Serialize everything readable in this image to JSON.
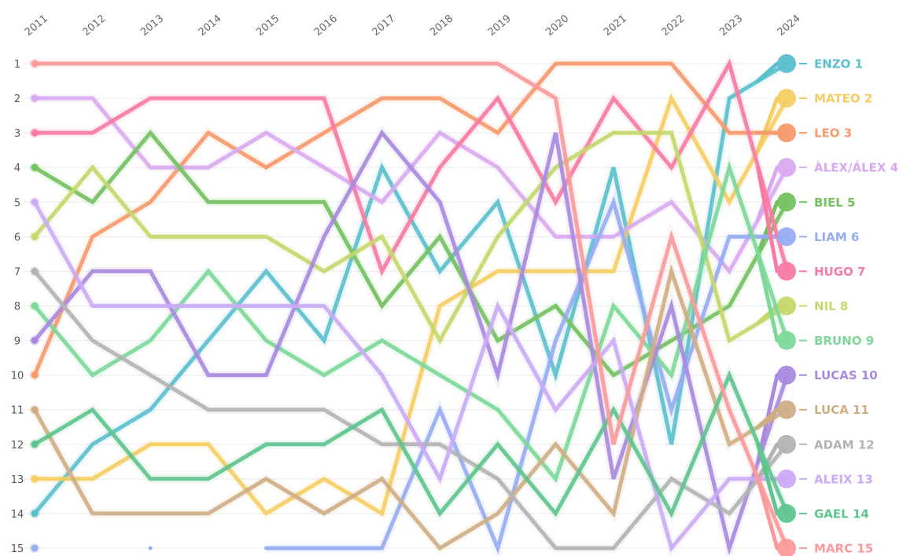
{
  "chart_data": {
    "type": "line",
    "title": "",
    "x": [
      "2011",
      "2012",
      "2013",
      "2014",
      "2015",
      "2016",
      "2017",
      "2018",
      "2019",
      "2020",
      "2021",
      "2022",
      "2023",
      "2024"
    ],
    "y_ticks": [
      "1",
      "2",
      "3",
      "4",
      "5",
      "6",
      "7",
      "8",
      "9",
      "10",
      "11",
      "12",
      "13",
      "14",
      "15"
    ],
    "y_inverted": true,
    "ylim": [
      1,
      15
    ],
    "grid": true,
    "legend": "right, end-of-line labels",
    "series": [
      {
        "name": "ENZO",
        "label": "ENZO 1",
        "color": "#5bbfcd",
        "values": [
          14,
          12,
          11,
          9,
          7,
          9,
          4,
          7,
          5,
          10,
          4,
          12,
          2,
          1
        ]
      },
      {
        "name": "MATEO",
        "label": "MATEO 2",
        "color": "#f5cd63",
        "values": [
          13,
          13,
          12,
          12,
          14,
          13,
          14,
          8,
          7,
          7,
          7,
          2,
          5,
          2
        ]
      },
      {
        "name": "LEO",
        "label": "LEO 3",
        "color": "#f79a6d",
        "values": [
          10,
          6,
          5,
          3,
          4,
          3,
          2,
          2,
          3,
          1,
          1,
          1,
          3,
          3
        ]
      },
      {
        "name": "ÀLEX/ÁLEX",
        "label": "ÀLEX/ÁLEX 4",
        "color": "#d9a9f0",
        "values": [
          2,
          2,
          4,
          4,
          3,
          4,
          5,
          3,
          4,
          6,
          6,
          5,
          7,
          4
        ]
      },
      {
        "name": "BIEL",
        "label": "BIEL 5",
        "color": "#74c15f",
        "values": [
          4,
          5,
          3,
          5,
          5,
          5,
          8,
          6,
          9,
          8,
          10,
          9,
          8,
          5
        ]
      },
      {
        "name": "LIAM",
        "label": "LIAM 6",
        "color": "#96adf3",
        "values": [
          15,
          null,
          15,
          null,
          15,
          15,
          15,
          11,
          15,
          9,
          5,
          11,
          6,
          6
        ]
      },
      {
        "name": "HUGO",
        "label": "HUGO 7",
        "color": "#f87ba2",
        "values": [
          3,
          3,
          2,
          2,
          2,
          2,
          7,
          4,
          2,
          5,
          2,
          4,
          1,
          7
        ]
      },
      {
        "name": "NIL",
        "label": "NIL 8",
        "color": "#c4d86c",
        "values": [
          6,
          4,
          6,
          6,
          6,
          7,
          6,
          9,
          6,
          4,
          3,
          3,
          9,
          8
        ]
      },
      {
        "name": "BRUNO",
        "label": "BRUNO 9",
        "color": "#7dd89a",
        "values": [
          8,
          10,
          9,
          7,
          9,
          10,
          9,
          10,
          11,
          13,
          8,
          10,
          4,
          9
        ]
      },
      {
        "name": "LUCAS",
        "label": "LUCAS 10",
        "color": "#a98ae0",
        "values": [
          9,
          7,
          7,
          10,
          10,
          6,
          3,
          5,
          10,
          3,
          13,
          8,
          15,
          10
        ]
      },
      {
        "name": "LUCA",
        "label": "LUCA 11",
        "color": "#cfae86",
        "values": [
          11,
          14,
          14,
          14,
          13,
          14,
          13,
          15,
          14,
          12,
          14,
          7,
          12,
          11
        ]
      },
      {
        "name": "ADAM",
        "label": "ADAM 12",
        "color": "#b3b3b3",
        "values": [
          7,
          9,
          10,
          11,
          11,
          11,
          12,
          12,
          13,
          15,
          15,
          13,
          14,
          12
        ]
      },
      {
        "name": "ALEIX",
        "label": "ALEIX 13",
        "color": "#cbaaf5",
        "values": [
          5,
          8,
          8,
          8,
          8,
          8,
          10,
          13,
          8,
          11,
          9,
          15,
          13,
          13
        ]
      },
      {
        "name": "GAEL",
        "label": "GAEL 14",
        "color": "#5fc48e",
        "values": [
          12,
          11,
          13,
          13,
          12,
          12,
          11,
          14,
          12,
          14,
          11,
          14,
          10,
          14
        ]
      },
      {
        "name": "MARC",
        "label": "MARC 15",
        "color": "#fb9a9a",
        "values": [
          1,
          1,
          1,
          1,
          1,
          1,
          1,
          1,
          1,
          2,
          12,
          6,
          11,
          15
        ]
      }
    ]
  }
}
